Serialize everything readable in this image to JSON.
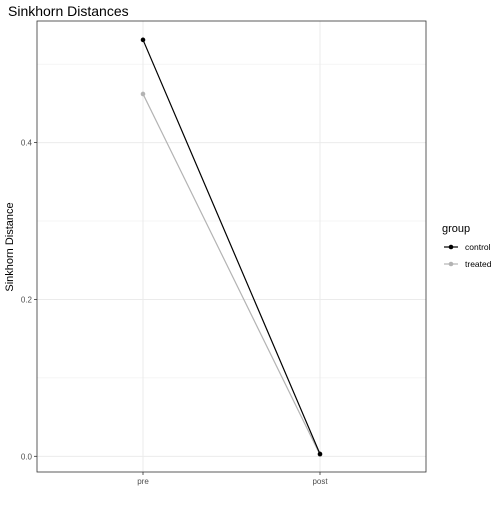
{
  "chart_data": {
    "type": "line",
    "title": "Sinkhorn Distances",
    "xlabel": "",
    "ylabel": "Sinkhorn Distance",
    "categories": [
      "pre",
      "post"
    ],
    "ylim": [
      -0.02,
      0.555
    ],
    "yticks": [
      0.0,
      0.2,
      0.4
    ],
    "ytick_labels": [
      "0.0",
      "0.2",
      "0.4"
    ],
    "grid": true,
    "legend": {
      "title": "group",
      "position": "right"
    },
    "series": [
      {
        "name": "control",
        "values": [
          0.531,
          0.003
        ],
        "color": "#000000"
      },
      {
        "name": "treated",
        "values": [
          0.462,
          0.002
        ],
        "color": "#b3b3b3"
      }
    ]
  }
}
